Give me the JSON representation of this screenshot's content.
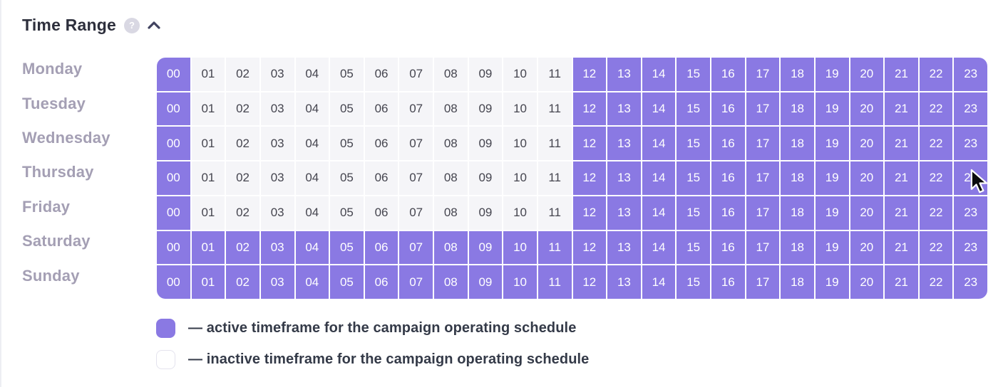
{
  "header": {
    "title": "Time Range",
    "help_icon": "?",
    "collapse_icon": "chevron-up"
  },
  "colors": {
    "active": "#8A79E3",
    "inactive": "#F5F5F8",
    "active_text": "#FFFFFF",
    "inactive_text": "#45454F",
    "day_label": "#A49FB4",
    "title": "#2D2F3C",
    "legend_text": "#343A48"
  },
  "schedule": {
    "hours": [
      "00",
      "01",
      "02",
      "03",
      "04",
      "05",
      "06",
      "07",
      "08",
      "09",
      "10",
      "11",
      "12",
      "13",
      "14",
      "15",
      "16",
      "17",
      "18",
      "19",
      "20",
      "21",
      "22",
      "23"
    ],
    "days": [
      {
        "label": "Monday",
        "active_hours": [
          0,
          12,
          13,
          14,
          15,
          16,
          17,
          18,
          19,
          20,
          21,
          22,
          23
        ]
      },
      {
        "label": "Tuesday",
        "active_hours": [
          0,
          12,
          13,
          14,
          15,
          16,
          17,
          18,
          19,
          20,
          21,
          22,
          23
        ]
      },
      {
        "label": "Wednesday",
        "active_hours": [
          0,
          12,
          13,
          14,
          15,
          16,
          17,
          18,
          19,
          20,
          21,
          22,
          23
        ]
      },
      {
        "label": "Thursday",
        "active_hours": [
          0,
          12,
          13,
          14,
          15,
          16,
          17,
          18,
          19,
          20,
          21,
          22,
          23
        ]
      },
      {
        "label": "Friday",
        "active_hours": [
          0,
          12,
          13,
          14,
          15,
          16,
          17,
          18,
          19,
          20,
          21,
          22,
          23
        ]
      },
      {
        "label": "Saturday",
        "active_hours": [
          0,
          1,
          2,
          3,
          4,
          5,
          6,
          7,
          8,
          9,
          10,
          11,
          12,
          13,
          14,
          15,
          16,
          17,
          18,
          19,
          20,
          21,
          22,
          23
        ]
      },
      {
        "label": "Sunday",
        "active_hours": [
          0,
          1,
          2,
          3,
          4,
          5,
          6,
          7,
          8,
          9,
          10,
          11,
          12,
          13,
          14,
          15,
          16,
          17,
          18,
          19,
          20,
          21,
          22,
          23
        ]
      }
    ]
  },
  "legend": {
    "items": [
      {
        "swatch": "active",
        "text": "— active timeframe for the campaign operating schedule"
      },
      {
        "swatch": "inactive",
        "text": "— inactive timeframe for the campaign operating schedule"
      }
    ]
  },
  "cursor": {
    "visible": true,
    "hovered_day": "Thursday",
    "hovered_hour": "23"
  }
}
